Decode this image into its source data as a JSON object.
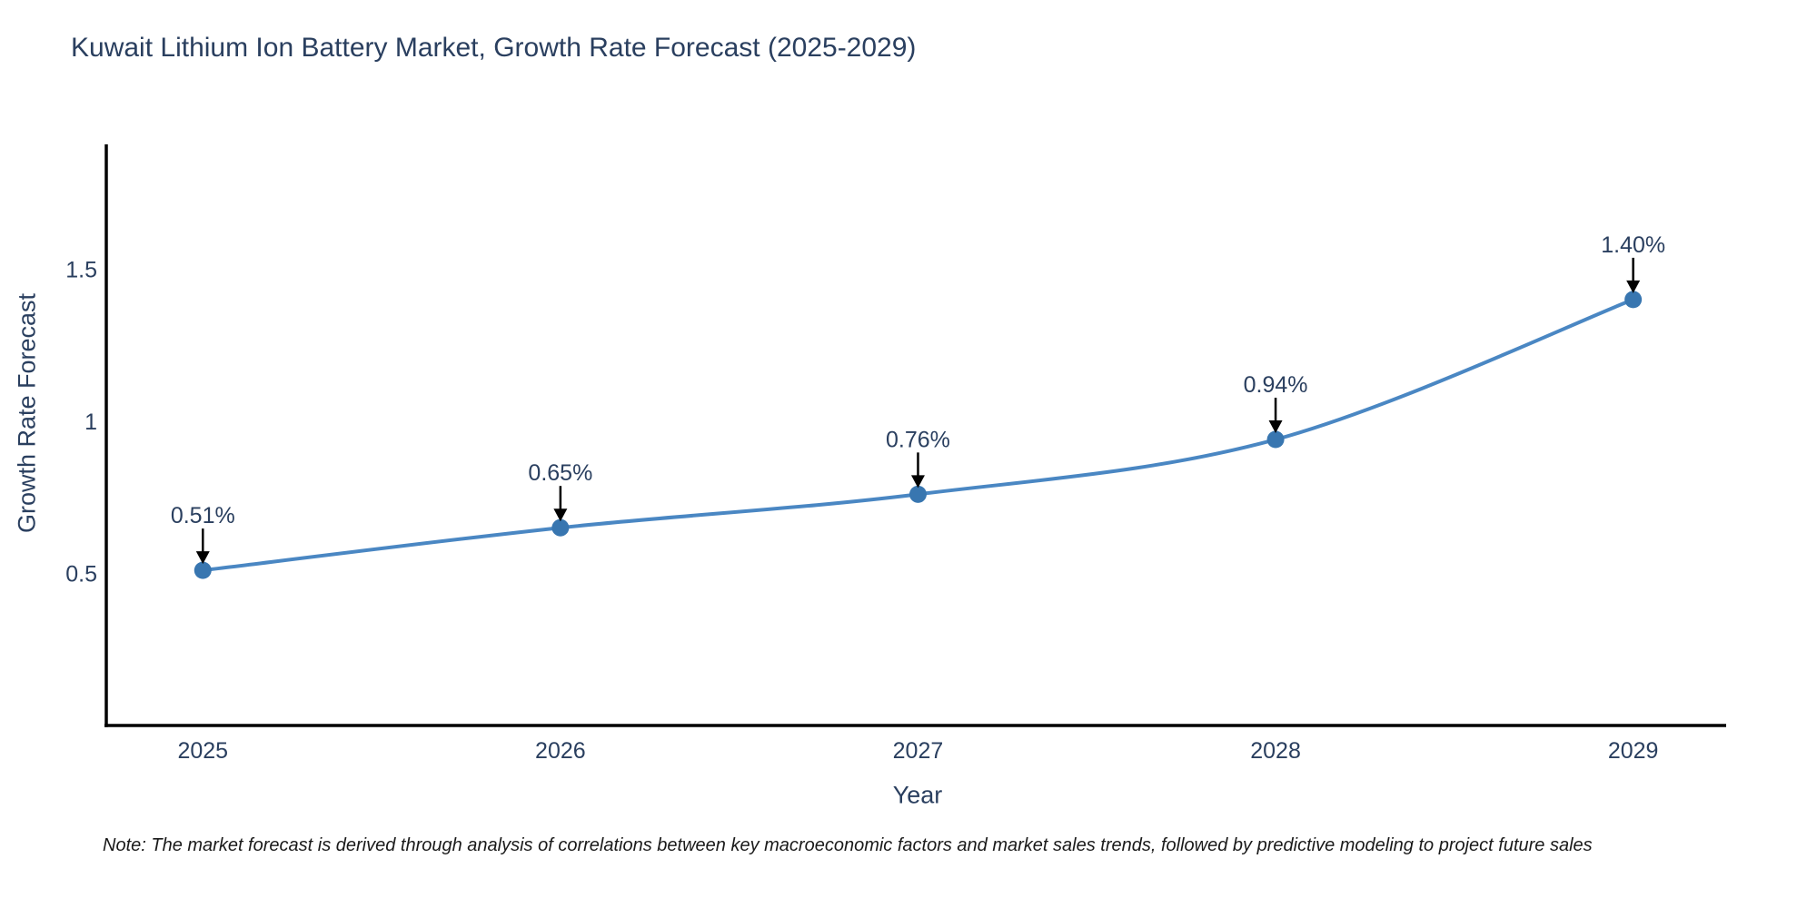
{
  "title": "Kuwait Lithium Ion Battery Market, Growth Rate Forecast (2025-2029)",
  "note": "Note: The market forecast is derived through analysis of correlations between key macroeconomic factors and market sales trends, followed by predictive modeling to project future sales",
  "chart_data": {
    "type": "line",
    "title": "Kuwait Lithium Ion Battery Market, Growth Rate Forecast (2025-2029)",
    "xlabel": "Year",
    "ylabel": "Growth Rate Forecast",
    "x": [
      2025,
      2026,
      2027,
      2028,
      2029
    ],
    "values": [
      0.51,
      0.65,
      0.76,
      0.94,
      1.4
    ],
    "point_labels": [
      "0.51%",
      "0.65%",
      "0.76%",
      "0.94%",
      "1.40%"
    ],
    "series_name": "Growth Rate Forecast",
    "xticks": [
      2025,
      2026,
      2027,
      2028,
      2029
    ],
    "xtick_labels": [
      "2025",
      "2026",
      "2027",
      "2028",
      "2029"
    ],
    "yticks": [
      0.5,
      1,
      1.5
    ],
    "ytick_labels": [
      "0.5",
      "1",
      "1.5"
    ],
    "xlim": [
      2024.73,
      2029.26
    ],
    "ylim": [
      0,
      1.91
    ],
    "grid": false,
    "legend": false,
    "line_shape": "spline",
    "annotations_arrow": true,
    "colors": {
      "line": "#4a87c3",
      "marker": "#3876b0",
      "arrow": "#000000",
      "axis_line": "#000000",
      "chart_text": "#2a3f5f",
      "note_text": "#1a1a1a",
      "background": "#ffffff"
    }
  }
}
